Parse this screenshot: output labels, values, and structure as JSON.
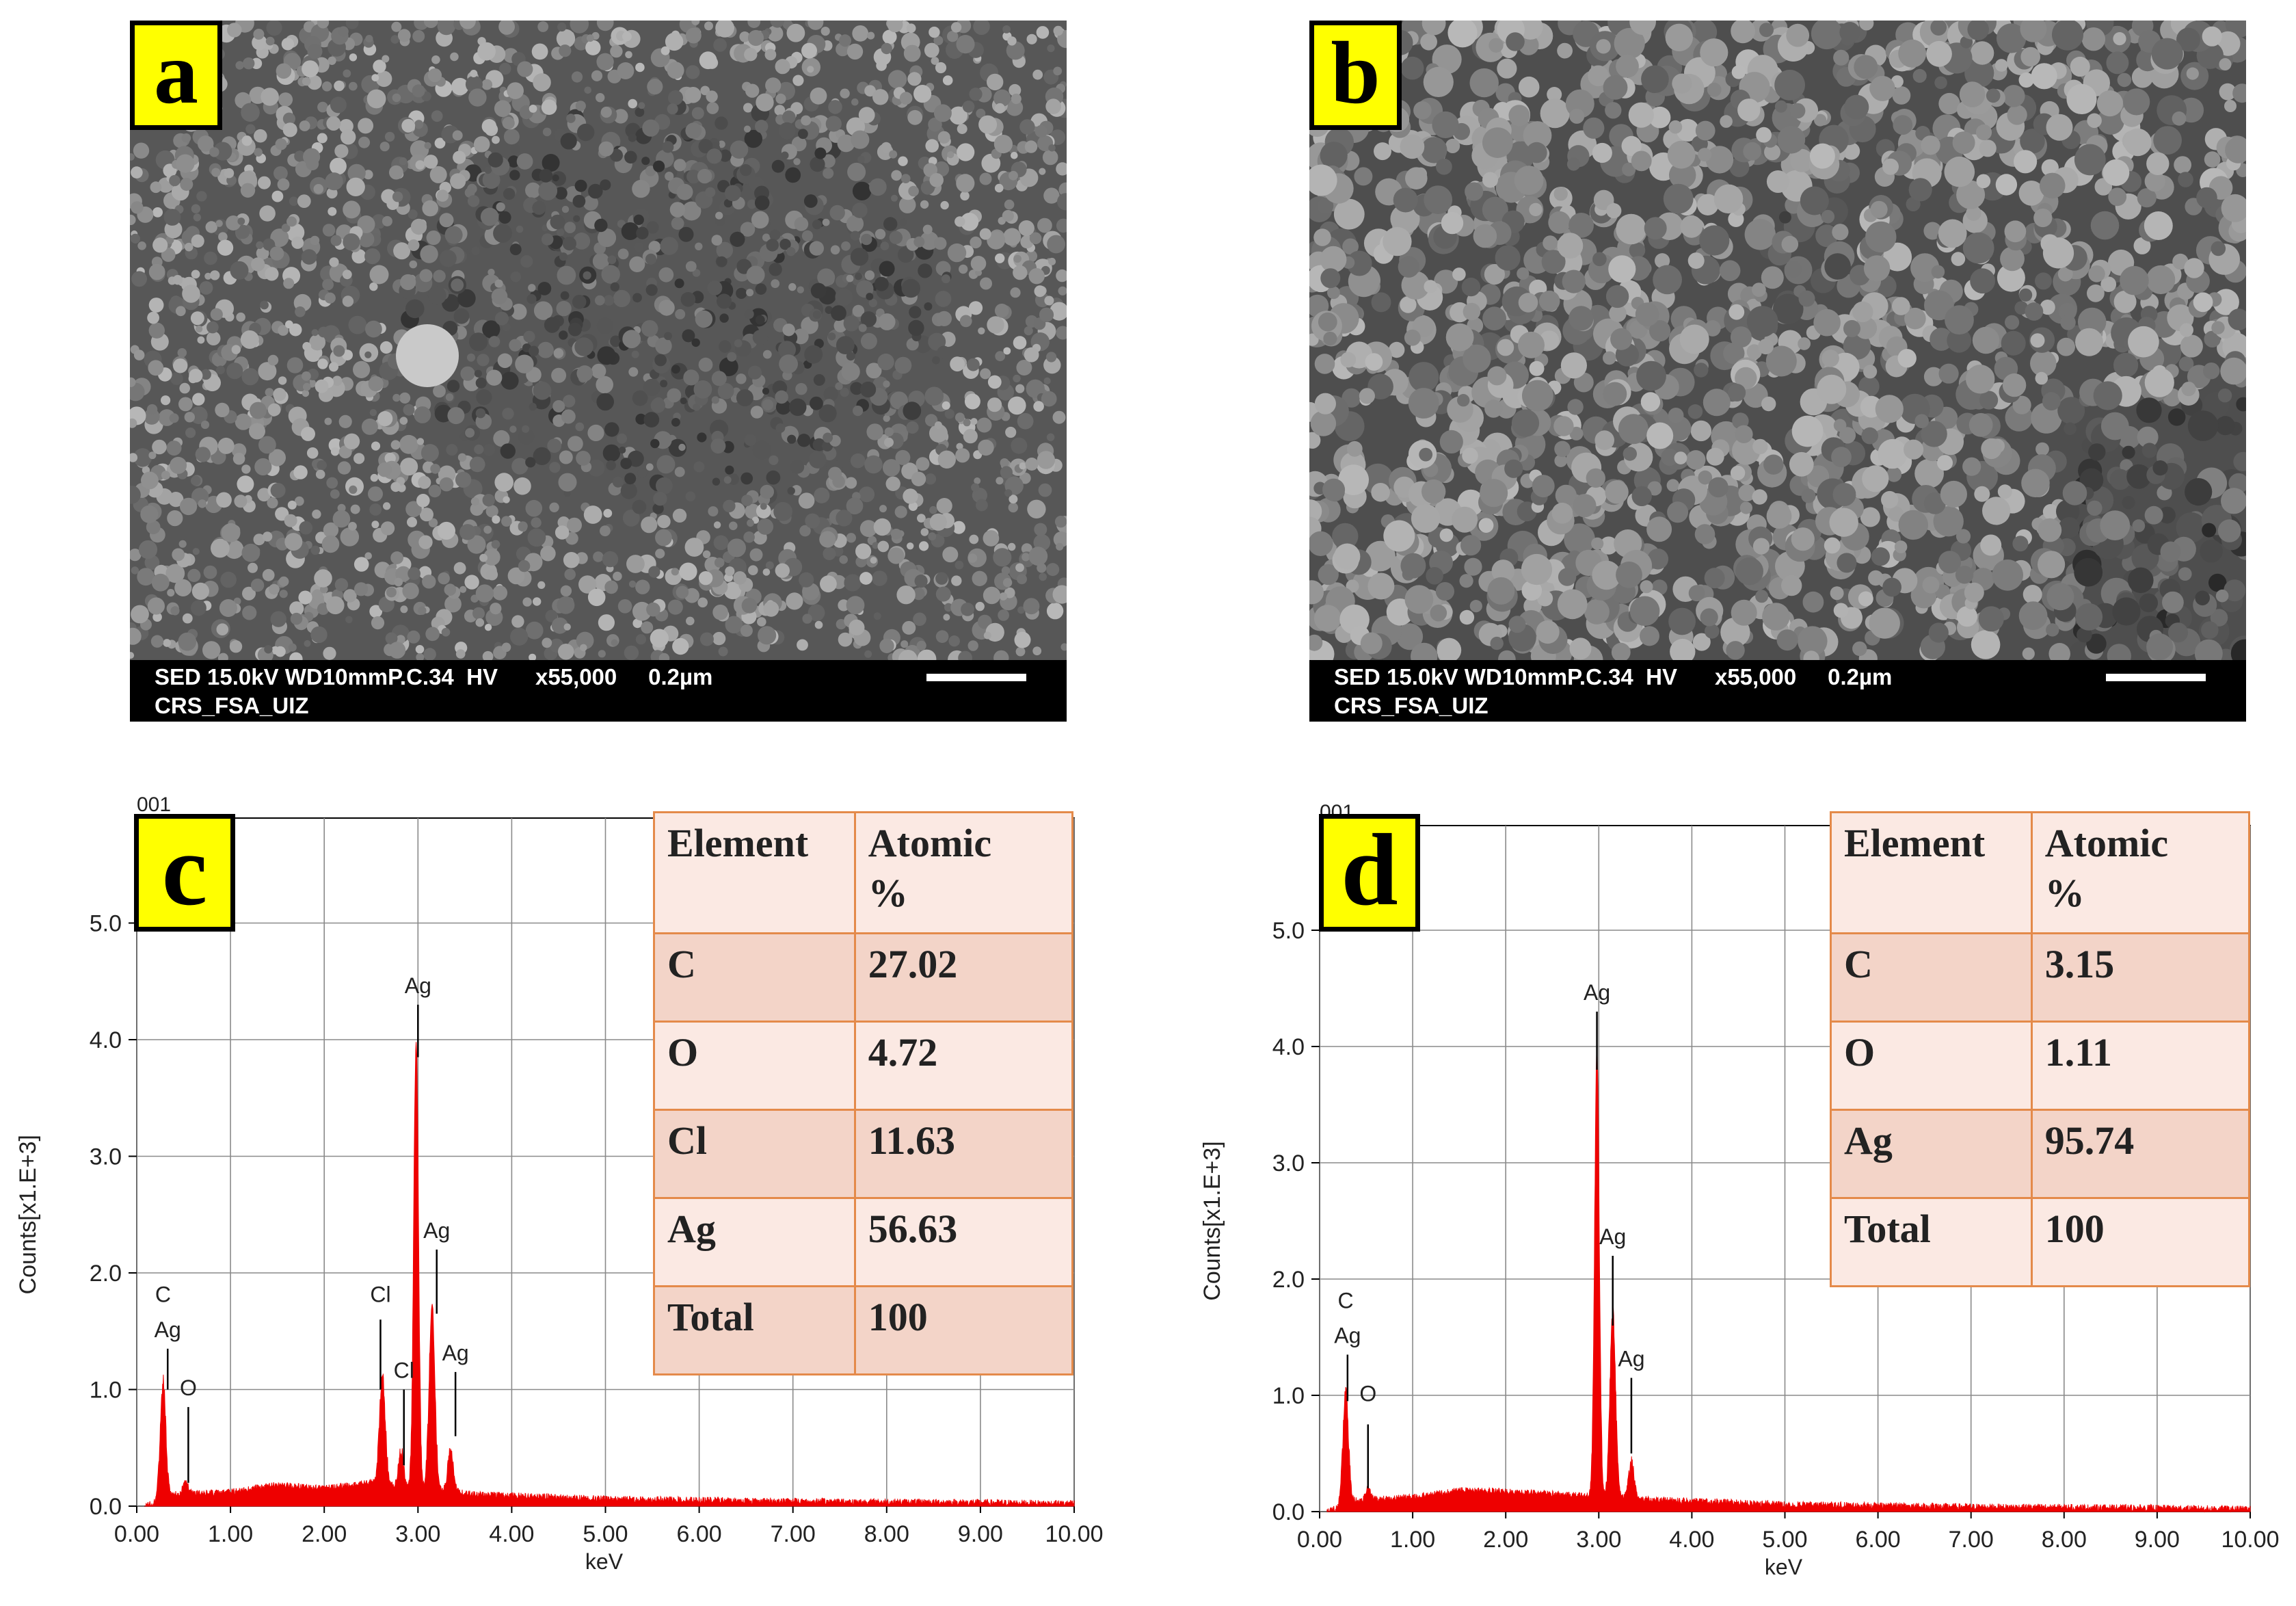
{
  "sem": [
    {
      "label": "a",
      "info_line1": "SED 15.0kV WD10mmP.C.34  HV      x55,000     0.2µm",
      "info_line2": "CRS_FSA_UIZ",
      "texture": "fine-dense"
    },
    {
      "label": "b",
      "info_line1": "SED 15.0kV WD10mmP.C.34  HV      x55,000     0.2µm",
      "info_line2": "CRS_FSA_UIZ",
      "texture": "coarse-grains"
    }
  ],
  "chart_data": [
    {
      "type": "line",
      "panel_label": "c",
      "corner_text": "001",
      "xlabel": "keV",
      "ylabel": "Counts[x1.E+3]",
      "xlim": [
        0,
        10
      ],
      "ylim": [
        0,
        5.0
      ],
      "x_ticks": [
        "0.00",
        "1.00",
        "2.00",
        "3.00",
        "4.00",
        "5.00",
        "6.00",
        "7.00",
        "8.00",
        "9.00",
        "10.00"
      ],
      "y_ticks": [
        "0.0",
        "1.0",
        "2.0",
        "3.0",
        "4.0",
        "5.0"
      ],
      "grid": true,
      "spectrum_color": "#ee0000",
      "peaks": [
        {
          "x": 0.28,
          "y": 1.0,
          "width": 0.06
        },
        {
          "x": 0.52,
          "y": 0.12,
          "width": 0.05
        },
        {
          "x": 2.62,
          "y": 0.95,
          "width": 0.06
        },
        {
          "x": 2.82,
          "y": 0.3,
          "width": 0.05
        },
        {
          "x": 2.98,
          "y": 3.85,
          "width": 0.05
        },
        {
          "x": 3.15,
          "y": 1.6,
          "width": 0.06
        },
        {
          "x": 3.35,
          "y": 0.35,
          "width": 0.06
        }
      ],
      "background": [
        [
          0.1,
          0.0
        ],
        [
          0.4,
          0.1
        ],
        [
          1.0,
          0.12
        ],
        [
          1.5,
          0.18
        ],
        [
          2.0,
          0.15
        ],
        [
          2.5,
          0.2
        ],
        [
          3.6,
          0.1
        ],
        [
          5.0,
          0.06
        ],
        [
          7.0,
          0.04
        ],
        [
          9.0,
          0.03
        ],
        [
          10.0,
          0.02
        ]
      ],
      "annotations": [
        {
          "text": "C",
          "x": 0.28,
          "y_text": 1.75
        },
        {
          "text": "Ag",
          "x": 0.33,
          "y_text": 1.45,
          "line_from": 1.35,
          "line_to": 1.0
        },
        {
          "text": "O",
          "x": 0.55,
          "y_text": 0.95,
          "line_from": 0.85,
          "line_to": 0.2
        },
        {
          "text": "Cl",
          "x": 2.6,
          "y_text": 1.75,
          "line_from": 1.6,
          "line_to": 1.0
        },
        {
          "text": "Cl",
          "x": 2.85,
          "y_text": 1.1,
          "line_from": 1.0,
          "line_to": 0.35
        },
        {
          "text": "Ag",
          "x": 3.0,
          "y_text": 4.4,
          "line_from": 4.3,
          "line_to": 3.85
        },
        {
          "text": "Ag",
          "x": 3.2,
          "y_text": 2.3,
          "line_from": 2.2,
          "line_to": 1.65
        },
        {
          "text": "Ag",
          "x": 3.4,
          "y_text": 1.25,
          "line_from": 1.15,
          "line_to": 0.6
        }
      ],
      "table": {
        "headers": [
          "Element",
          "Atomic\n%"
        ],
        "rows": [
          [
            "C",
            "27.02"
          ],
          [
            "O",
            "4.72"
          ],
          [
            "Cl",
            "11.63"
          ],
          [
            "Ag",
            "56.63"
          ],
          [
            "Total",
            "100"
          ]
        ]
      }
    },
    {
      "type": "line",
      "panel_label": "d",
      "corner_text": "001",
      "xlabel": "keV",
      "ylabel": "Counts[x1.E+3]",
      "xlim": [
        0,
        10
      ],
      "ylim": [
        0,
        5.0
      ],
      "x_ticks": [
        "0.00",
        "1.00",
        "2.00",
        "3.00",
        "4.00",
        "5.00",
        "6.00",
        "7.00",
        "8.00",
        "9.00",
        "10.00"
      ],
      "y_ticks": [
        "0.0",
        "1.0",
        "2.0",
        "3.0",
        "4.0",
        "5.0"
      ],
      "grid": true,
      "spectrum_color": "#ee0000",
      "peaks": [
        {
          "x": 0.28,
          "y": 0.95,
          "width": 0.06
        },
        {
          "x": 0.52,
          "y": 0.1,
          "width": 0.05
        },
        {
          "x": 2.98,
          "y": 3.8,
          "width": 0.05
        },
        {
          "x": 3.15,
          "y": 1.6,
          "width": 0.06
        },
        {
          "x": 3.35,
          "y": 0.3,
          "width": 0.06
        }
      ],
      "background": [
        [
          0.1,
          0.0
        ],
        [
          0.4,
          0.1
        ],
        [
          1.0,
          0.12
        ],
        [
          1.5,
          0.18
        ],
        [
          2.0,
          0.17
        ],
        [
          2.5,
          0.15
        ],
        [
          3.6,
          0.1
        ],
        [
          5.0,
          0.06
        ],
        [
          7.0,
          0.04
        ],
        [
          9.0,
          0.03
        ],
        [
          10.0,
          0.02
        ]
      ],
      "annotations": [
        {
          "text": "C",
          "x": 0.28,
          "y_text": 1.75
        },
        {
          "text": "Ag",
          "x": 0.3,
          "y_text": 1.45,
          "line_from": 1.35,
          "line_to": 0.95
        },
        {
          "text": "O",
          "x": 0.52,
          "y_text": 0.95,
          "line_from": 0.75,
          "line_to": 0.2
        },
        {
          "text": "Ag",
          "x": 2.98,
          "y_text": 4.4,
          "line_from": 4.3,
          "line_to": 3.8
        },
        {
          "text": "Ag",
          "x": 3.15,
          "y_text": 2.3,
          "line_from": 2.2,
          "line_to": 1.6
        },
        {
          "text": "Ag",
          "x": 3.35,
          "y_text": 1.25,
          "line_from": 1.15,
          "line_to": 0.5
        }
      ],
      "table": {
        "headers": [
          "Element",
          "Atomic\n%"
        ],
        "rows": [
          [
            "C",
            "3.15"
          ],
          [
            "O",
            "1.11"
          ],
          [
            "Ag",
            "95.74"
          ],
          [
            "Total",
            "100"
          ]
        ]
      }
    }
  ]
}
